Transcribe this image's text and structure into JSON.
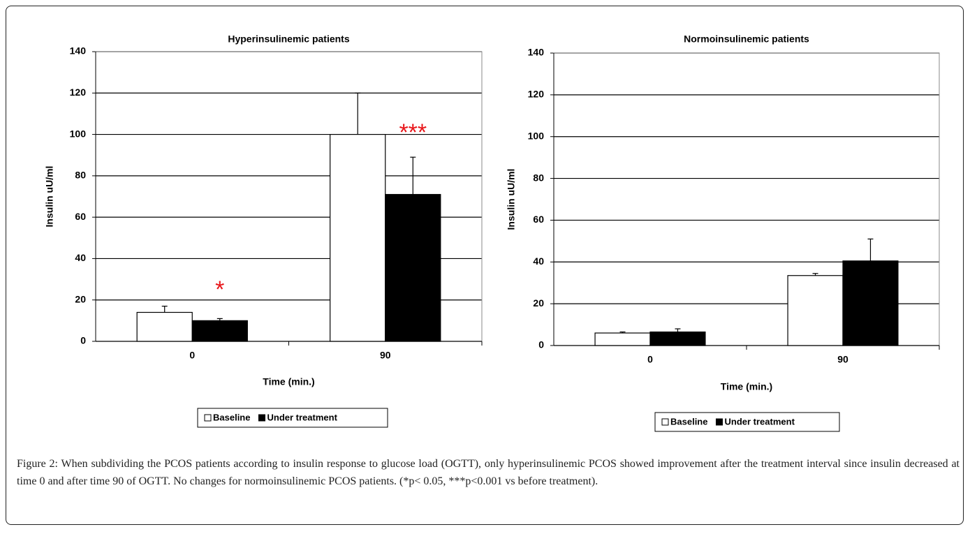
{
  "chart_data": [
    {
      "type": "bar",
      "title": "Hyperinsulinemic patients",
      "xlabel": "Time (min.)",
      "ylabel": "Insulin uU/ml",
      "categories": [
        "0",
        "90"
      ],
      "series": [
        {
          "name": "Baseline",
          "color": "#ffffff",
          "values": [
            14,
            100
          ],
          "errors": [
            3,
            20
          ]
        },
        {
          "name": "Under treatment",
          "color": "#000000",
          "values": [
            10,
            71
          ],
          "errors": [
            1,
            18
          ]
        }
      ],
      "ylim": [
        0,
        140
      ],
      "yticks": [
        0,
        20,
        40,
        60,
        80,
        100,
        120,
        140
      ],
      "grid": true,
      "annotations": [
        "*",
        "***"
      ],
      "annotation_color": "#e8171b"
    },
    {
      "type": "bar",
      "title": "Normoinsulinemic patients",
      "xlabel": "Time (min.)",
      "ylabel": "Insulin uU/ml",
      "categories": [
        "0",
        "90"
      ],
      "series": [
        {
          "name": "Baseline",
          "color": "#ffffff",
          "values": [
            6,
            33.5
          ],
          "errors": [
            0.5,
            1
          ]
        },
        {
          "name": "Under treatment",
          "color": "#000000",
          "values": [
            6.5,
            40.5
          ],
          "errors": [
            1.5,
            10.5
          ]
        }
      ],
      "ylim": [
        0,
        140
      ],
      "yticks": [
        0,
        20,
        40,
        60,
        80,
        100,
        120,
        140
      ],
      "grid": true
    }
  ],
  "caption": "Figure 2: When subdividing the PCOS patients according to insulin response to glucose load (OGTT), only hyperinsulinemic PCOS showed improvement after the treatment interval since insulin decreased at time 0 and after time 90 of OGTT. No changes for normoinsulinemic PCOS patients. (*p< 0.05, ***p<0.001 vs before treatment)."
}
